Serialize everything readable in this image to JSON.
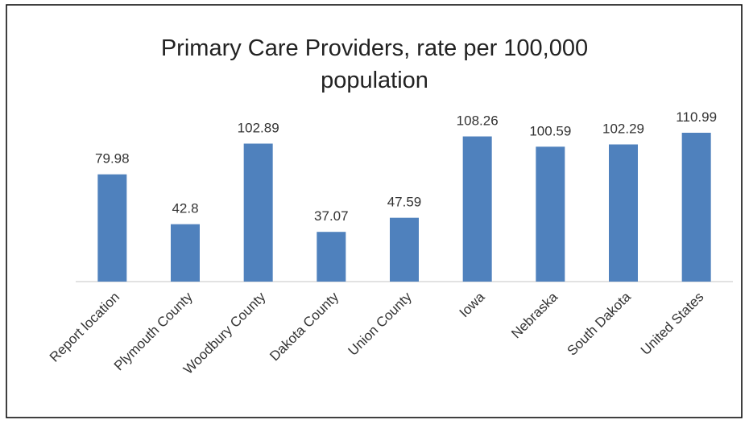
{
  "chart_data": {
    "type": "bar",
    "title": "Primary Care Providers, rate per 100,000 population",
    "categories": [
      "Report location",
      "Plymouth County",
      "Woodbury County",
      "Dakota County",
      "Union County",
      "Iowa",
      "Nebraska",
      "South Dakota",
      "United States"
    ],
    "values": [
      79.98,
      42.8,
      102.89,
      37.07,
      47.59,
      108.26,
      100.59,
      102.29,
      110.99
    ],
    "color": "#4f81bd"
  }
}
